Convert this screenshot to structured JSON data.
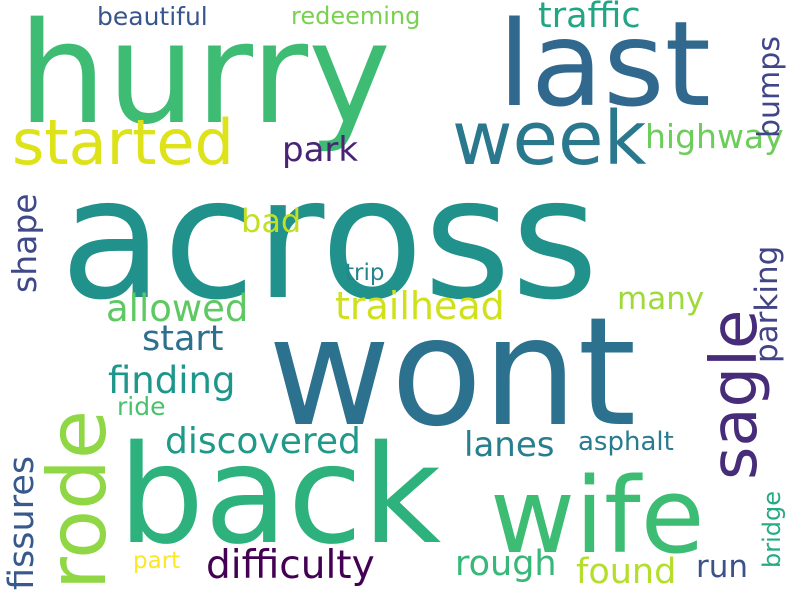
{
  "words": {
    "across": "across",
    "hurry": "hurry",
    "last": "last",
    "week": "week",
    "started": "started",
    "wont": "wont",
    "back": "back",
    "wife": "wife",
    "rode": "rode",
    "sagle": "sagle",
    "traffic": "traffic",
    "beautiful": "beautiful",
    "redeeming": "redeeming",
    "bumps": "bumps",
    "park": "park",
    "highway": "highway",
    "bad": "bad",
    "shape": "shape",
    "parking": "parking",
    "trip": "trip",
    "allowed": "allowed",
    "trailhead": "trailhead",
    "many": "many",
    "start": "start",
    "finding": "finding",
    "ride": "ride",
    "discovered": "discovered",
    "lanes": "lanes",
    "asphalt": "asphalt",
    "fissures": "fissures",
    "bridge": "bridge",
    "difficulty": "difficulty",
    "rough": "rough",
    "found": "found",
    "run": "run",
    "part": "part"
  },
  "colors": {
    "background": "#ffffff",
    "palette": "viridis"
  }
}
